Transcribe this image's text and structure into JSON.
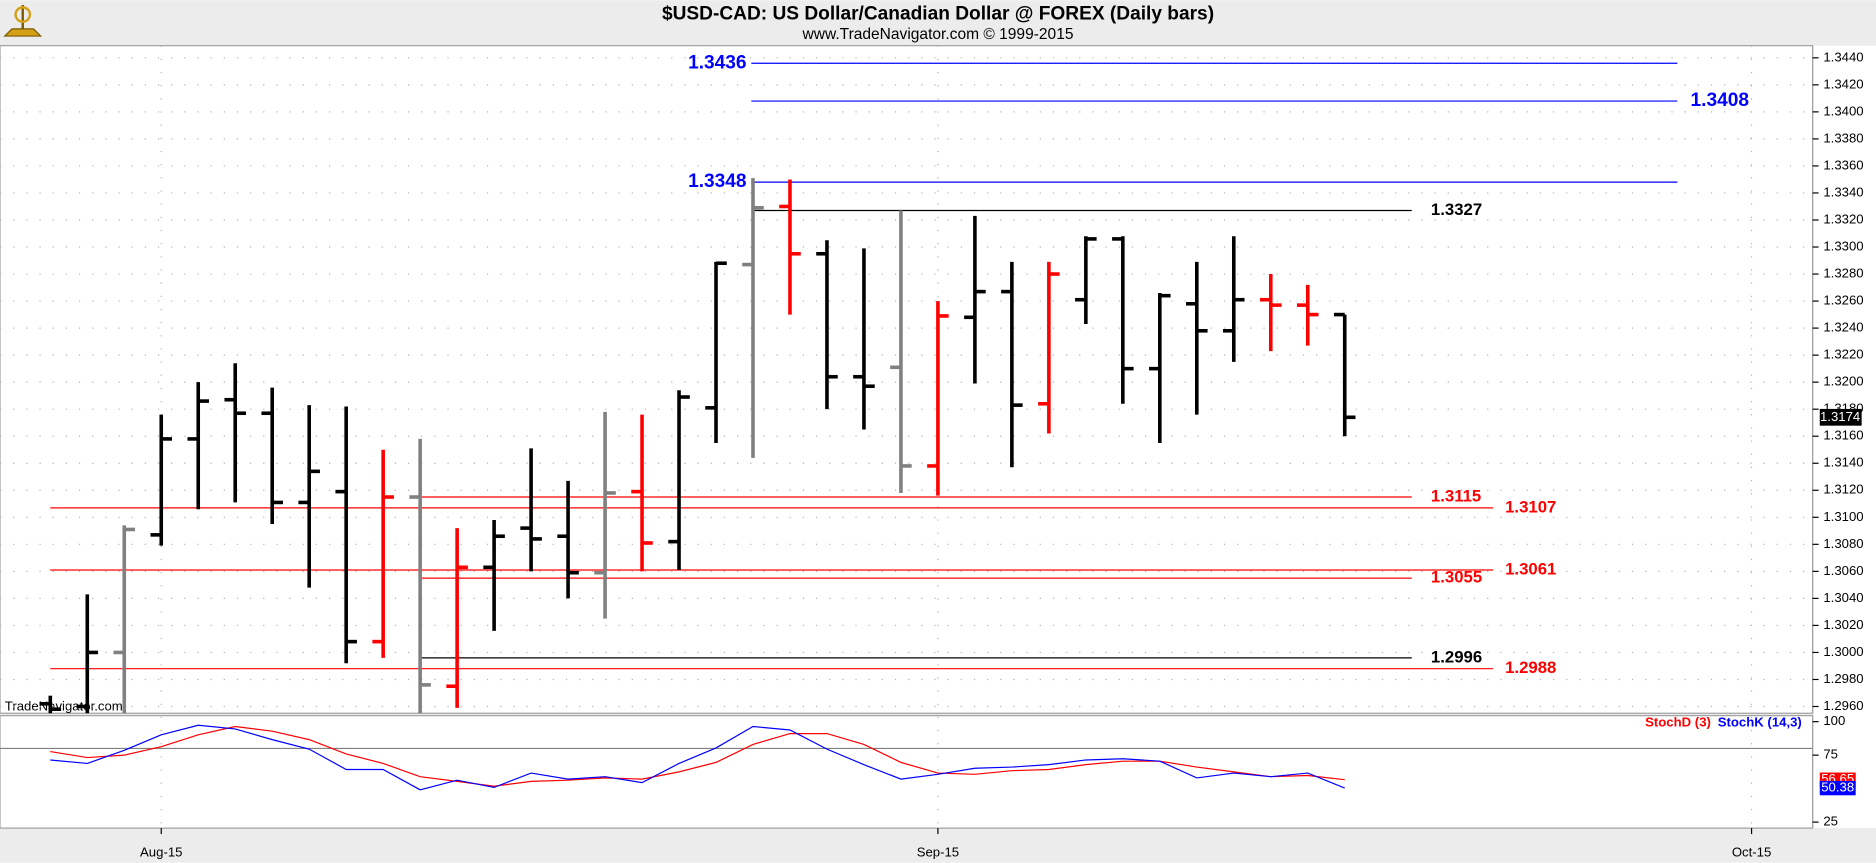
{
  "chart_data": [
    {
      "type": "ohlc",
      "title": "$USD-CAD:  US Dollar/Canadian Dollar @ FOREX  (Daily bars)",
      "subtitle": "www.TradeNavigator.com © 1999-2015",
      "watermark": "TradeNavigator.com",
      "categories": [
        null,
        null,
        null,
        null,
        null,
        null,
        null,
        null,
        null,
        null,
        null,
        null,
        null,
        null,
        null,
        null,
        null,
        null,
        null,
        null,
        null,
        null,
        null,
        null,
        null,
        null,
        null,
        null,
        null,
        null,
        null,
        null,
        null,
        null,
        null,
        null
      ],
      "open": [
        1.2962,
        1.296,
        1.3,
        1.3087,
        1.3158,
        1.3187,
        1.3177,
        1.3111,
        1.3119,
        1.3008,
        1.3115,
        1.2975,
        1.3063,
        1.3092,
        1.3086,
        1.3059,
        1.3119,
        1.3082,
        1.3181,
        1.3287,
        1.333,
        1.3295,
        1.3204,
        1.3211,
        1.3138,
        1.3248,
        1.3267,
        1.3184,
        1.3261,
        1.3306,
        1.321,
        1.3258,
        1.3238,
        1.3261,
        1.3257,
        1.325
      ],
      "high": [
        1.2968,
        1.3043,
        1.3094,
        1.3176,
        1.32,
        1.3214,
        1.3196,
        1.3183,
        1.3182,
        1.315,
        1.3158,
        1.3092,
        1.3098,
        1.3151,
        1.3127,
        1.3178,
        1.3176,
        1.3194,
        1.3289,
        1.3351,
        1.335,
        1.3305,
        1.3299,
        1.3327,
        1.326,
        1.3323,
        1.3289,
        1.3289,
        1.3308,
        1.3308,
        1.3266,
        1.3289,
        1.3308,
        1.328,
        1.3272,
        1.325
      ],
      "low": [
        1.2945,
        1.295,
        1.2952,
        1.3079,
        1.3106,
        1.3111,
        1.3095,
        1.3048,
        1.2992,
        1.2996,
        1.295,
        1.2959,
        1.3016,
        1.306,
        1.304,
        1.3025,
        1.306,
        1.3061,
        1.3155,
        1.3144,
        1.325,
        1.318,
        1.3165,
        1.3118,
        1.3116,
        1.3199,
        1.3137,
        1.3162,
        1.3243,
        1.3184,
        1.3155,
        1.3176,
        1.3215,
        1.3223,
        1.3227,
        1.316
      ],
      "close": [
        1.2958,
        1.3,
        1.3091,
        1.3158,
        1.3186,
        1.3177,
        1.3111,
        1.3134,
        1.3008,
        1.3115,
        1.2976,
        1.3063,
        1.3086,
        1.3084,
        1.3059,
        1.3118,
        1.3081,
        1.3189,
        1.3288,
        1.3329,
        1.3295,
        1.3204,
        1.3197,
        1.3138,
        1.3249,
        1.3267,
        1.3183,
        1.328,
        1.3306,
        1.321,
        1.3264,
        1.3238,
        1.3261,
        1.3257,
        1.325,
        1.3174
      ],
      "colors": [
        "#000000",
        "#000000",
        "#808080",
        "#000000",
        "#000000",
        "#000000",
        "#000000",
        "#000000",
        "#000000",
        "#ff0000",
        "#808080",
        "#ff0000",
        "#000000",
        "#000000",
        "#000000",
        "#808080",
        "#ff0000",
        "#000000",
        "#000000",
        "#808080",
        "#ff0000",
        "#000000",
        "#000000",
        "#808080",
        "#ff0000",
        "#000000",
        "#000000",
        "#ff0000",
        "#000000",
        "#000000",
        "#000000",
        "#000000",
        "#000000",
        "#ff0000",
        "#ff0000",
        "#000000"
      ],
      "levels": [
        {
          "value": 1.3436,
          "color": "#0000ff"
        },
        {
          "value": 1.3408,
          "color": "#0000ff"
        },
        {
          "value": 1.3348,
          "color": "#0000ff"
        },
        {
          "value": 1.3327,
          "color": "#000000"
        },
        {
          "value": 1.3115,
          "color": "#ff0000"
        },
        {
          "value": 1.3107,
          "color": "#ff0000"
        },
        {
          "value": 1.3061,
          "color": "#ff0000"
        },
        {
          "value": 1.3055,
          "color": "#ff0000"
        },
        {
          "value": 1.2996,
          "color": "#000000"
        },
        {
          "value": 1.2988,
          "color": "#ff0000"
        }
      ],
      "xlim": [
        -1.36,
        47.65
      ],
      "xticks": [
        {
          "value": 3,
          "label": "Aug-15"
        },
        {
          "value": 24,
          "label": "Sep-15"
        },
        {
          "value": 46,
          "label": "Oct-15"
        }
      ],
      "ylim": [
        1.2955,
        1.3449
      ],
      "yticks": [
        {
          "value": 1.296,
          "label": "1.2960"
        },
        {
          "value": 1.298,
          "label": "1.2980"
        },
        {
          "value": 1.3,
          "label": "1.3000"
        },
        {
          "value": 1.302,
          "label": "1.3020"
        },
        {
          "value": 1.304,
          "label": "1.3040"
        },
        {
          "value": 1.306,
          "label": "1.3060"
        },
        {
          "value": 1.308,
          "label": "1.3080"
        },
        {
          "value": 1.31,
          "label": "1.3100"
        },
        {
          "value": 1.312,
          "label": "1.3120"
        },
        {
          "value": 1.314,
          "label": "1.3140"
        },
        {
          "value": 1.316,
          "label": "1.3160"
        },
        {
          "value": 1.318,
          "label": "1.3180"
        },
        {
          "value": 1.32,
          "label": "1.3200"
        },
        {
          "value": 1.322,
          "label": "1.3220"
        },
        {
          "value": 1.324,
          "label": "1.3240"
        },
        {
          "value": 1.326,
          "label": "1.3260"
        },
        {
          "value": 1.328,
          "label": "1.3280"
        },
        {
          "value": 1.33,
          "label": "1.3300"
        },
        {
          "value": 1.332,
          "label": "1.3320"
        },
        {
          "value": 1.334,
          "label": "1.3340"
        },
        {
          "value": 1.336,
          "label": "1.3360"
        },
        {
          "value": 1.338,
          "label": "1.3380"
        },
        {
          "value": 1.34,
          "label": "1.3400"
        },
        {
          "value": 1.342,
          "label": "1.3420"
        },
        {
          "value": 1.344,
          "label": "1.3440"
        }
      ],
      "grid": true
    },
    {
      "type": "line",
      "series": [
        {
          "name": "StochD (3)",
          "color": "#ff0000",
          "values": [
            77.7,
            73.2,
            75.0,
            81.3,
            90.2,
            96.4,
            92.9,
            86.6,
            75.9,
            68.8,
            58.9,
            55.4,
            51.8,
            55.4,
            56.3,
            58.0,
            57.1,
            62.5,
            69.6,
            83.0,
            91.1,
            91.1,
            83.0,
            69.6,
            61.6,
            60.7,
            63.4,
            64.3,
            67.9,
            70.5,
            70.5,
            66.1,
            62.5,
            58.9,
            59.8,
            56.65
          ]
        },
        {
          "name": "StochK (14,3)",
          "color": "#0000ff",
          "values": [
            71.4,
            68.8,
            78.6,
            90.2,
            97.3,
            94.6,
            86.6,
            79.5,
            64.3,
            64.3,
            49.1,
            56.3,
            50.9,
            61.6,
            57.1,
            58.9,
            54.5,
            68.8,
            80.4,
            96.4,
            93.8,
            79.5,
            67.9,
            57.1,
            60.7,
            65.2,
            66.1,
            67.9,
            71.4,
            72.3,
            70.5,
            58.0,
            61.6,
            58.9,
            61.6,
            50.38
          ]
        }
      ],
      "ref_lines": [
        80
      ],
      "ylim": [
        20.5,
        104.5
      ],
      "yticks": [
        25,
        75,
        100
      ]
    }
  ]
}
